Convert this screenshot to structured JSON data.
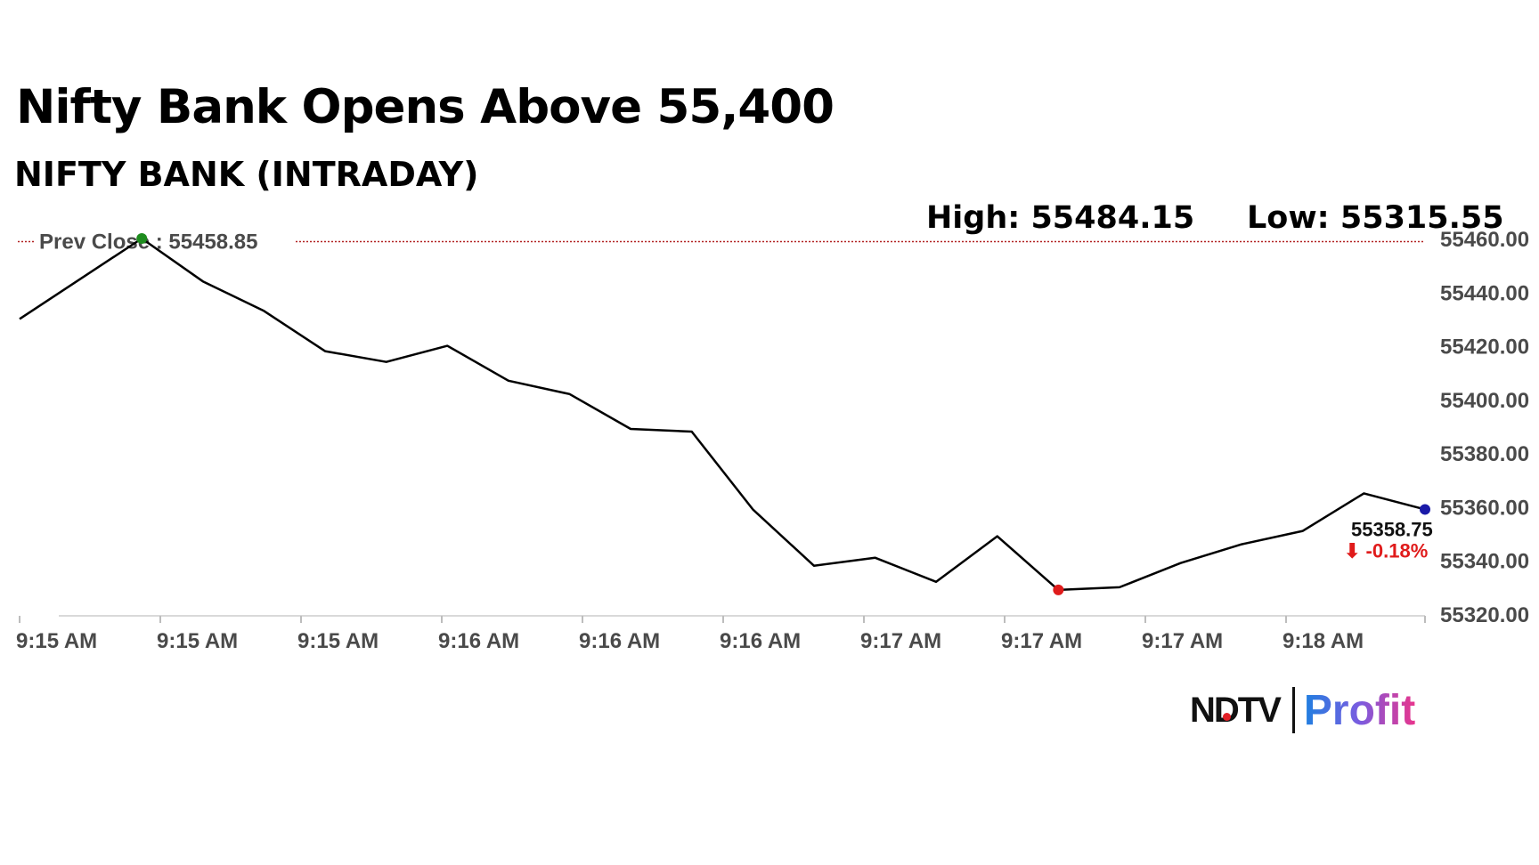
{
  "headline": "Nifty Bank Opens Above 55,400",
  "subtitle": "NIFTY BANK (INTRADAY)",
  "stats": {
    "high": "High: 55484.15",
    "low": "Low: 55315.55"
  },
  "brand": {
    "name": "NDTV",
    "product": "Profit",
    "accent_colors": [
      "#e21f26",
      "#1f7fe0",
      "#e8358d"
    ]
  },
  "chart_data": {
    "type": "line",
    "prev_close": {
      "label": "Prev Close : 55458.85",
      "value": 55458.85,
      "color": "#b22222"
    },
    "x_tick_labels": [
      "9:15 AM",
      "9:15 AM",
      "9:15 AM",
      "9:16 AM",
      "9:16 AM",
      "9:16 AM",
      "9:17 AM",
      "9:17 AM",
      "9:17 AM",
      "9:18 AM"
    ],
    "y_tick_labels": [
      "55320.00",
      "55340.00",
      "55360.00",
      "55380.00",
      "55400.00",
      "55420.00",
      "55440.00",
      "55460.00"
    ],
    "ylim": [
      55320,
      55460
    ],
    "grid": false,
    "series": [
      {
        "color": "#000000",
        "values": [
          55430,
          55445,
          55460,
          55444,
          55433,
          55418,
          55414,
          55420,
          55407,
          55402,
          55389,
          55388,
          55359,
          55338,
          55341,
          55332,
          55349,
          55329,
          55330,
          55339,
          55346,
          55351,
          55365,
          55359
        ]
      }
    ],
    "markers": [
      {
        "name": "high-marker",
        "index": 2,
        "color": "#1e8c1e"
      },
      {
        "name": "low-marker",
        "index": 17,
        "color": "#e01b1b"
      },
      {
        "name": "last-marker",
        "index": 23,
        "color": "#1a1aa8"
      }
    ],
    "last_value_label": "55358.75",
    "change_label": "⬇ -0.18%",
    "change_color": "#e01b1b"
  }
}
